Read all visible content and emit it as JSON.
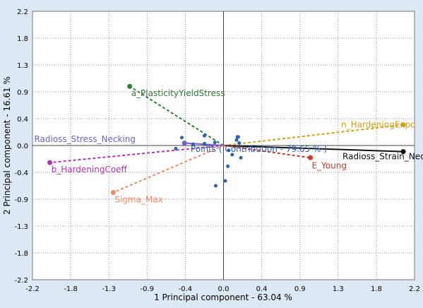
{
  "chart_data": {
    "type": "scatter",
    "xlabel": "1 Principal component - 63.04 %",
    "ylabel": "2 Principal component - 16.61 %",
    "xlim": [
      -2.2,
      2.2
    ],
    "ylim": [
      -2.2,
      2.2
    ],
    "xticks": [
      -2.2,
      -1.8,
      -1.3,
      -0.9,
      -0.4,
      0.0,
      0.4,
      0.9,
      1.3,
      1.8,
      2.2
    ],
    "yticks": [
      2.2,
      1.8,
      1.3,
      0.9,
      0.4,
      0.0,
      -0.4,
      -0.9,
      -1.3,
      -1.8,
      -2.2
    ],
    "xtick_labels": [
      "-2.2",
      "-1.8",
      "-1.3",
      "-0.9",
      "-0.4",
      "0.0",
      "0.4",
      "0.9",
      "1.3",
      "1.8",
      "2.2"
    ],
    "ytick_labels": [
      "2.2",
      "1.8",
      "1.3",
      "0.9",
      "0.4",
      "0.0",
      "-0.4",
      "-0.9",
      "-1.3",
      "-1.8",
      "-2.2"
    ],
    "grid": true,
    "points_label": "Points ( Contribution - 79.65 % )",
    "points_color": "#2e5fb8",
    "points": [
      {
        "x": -0.48,
        "y": 0.13
      },
      {
        "x": -0.22,
        "y": 0.16
      },
      {
        "x": -0.1,
        "y": 0.05
      },
      {
        "x": -0.22,
        "y": 0.03
      },
      {
        "x": -0.55,
        "y": -0.05
      },
      {
        "x": 0.16,
        "y": 0.14
      },
      {
        "x": 0.17,
        "y": 0.14
      },
      {
        "x": 0.15,
        "y": 0.09
      },
      {
        "x": 0.18,
        "y": 0.04
      },
      {
        "x": 0.06,
        "y": -0.08
      },
      {
        "x": 0.1,
        "y": -0.15
      },
      {
        "x": 0.2,
        "y": -0.2
      },
      {
        "x": 0.05,
        "y": -0.34
      },
      {
        "x": 0.02,
        "y": -0.58
      },
      {
        "x": -0.09,
        "y": -0.66
      },
      {
        "x": -0.35,
        "y": 0.02
      }
    ],
    "variables": [
      {
        "name": "a_PlasticityYieldStress",
        "x": -1.08,
        "y": 0.97,
        "color": "#2e7d32",
        "style": "dashed",
        "label_dx": 2,
        "label_dy": 14,
        "anchor": "start"
      },
      {
        "name": "n_HardeningExpo",
        "x": 2.07,
        "y": 0.34,
        "color": "#d4a017",
        "style": "dashed",
        "label_dx": -88,
        "label_dy": 4,
        "anchor": "start"
      },
      {
        "name": "Radioss_Stress_Necking",
        "x": -0.45,
        "y": 0.04,
        "color": "#6b63c9",
        "style": "solid",
        "label_x": -2.18,
        "label_y": 0.06,
        "anchor": "start"
      },
      {
        "name": "Radioss_Strain_Necking",
        "x": 2.07,
        "y": -0.1,
        "color": "#111111",
        "style": "solid",
        "label_dx": -86,
        "label_dy": 11,
        "anchor": "start"
      },
      {
        "name": "E_Young",
        "x": 1.0,
        "y": -0.2,
        "color": "#cc3b2a",
        "style": "dashed",
        "label_dx": 2,
        "label_dy": 15,
        "anchor": "start"
      },
      {
        "name": "b_HardeningCoeff",
        "x": -2.0,
        "y": -0.28,
        "color": "#b832b5",
        "style": "dashed",
        "label_dx": 2,
        "label_dy": 14,
        "anchor": "start"
      },
      {
        "name": "Sigma_Max",
        "x": -1.27,
        "y": -0.77,
        "color": "#f28a65",
        "style": "dashed",
        "label_dx": 2,
        "label_dy": 14,
        "anchor": "start"
      }
    ]
  }
}
